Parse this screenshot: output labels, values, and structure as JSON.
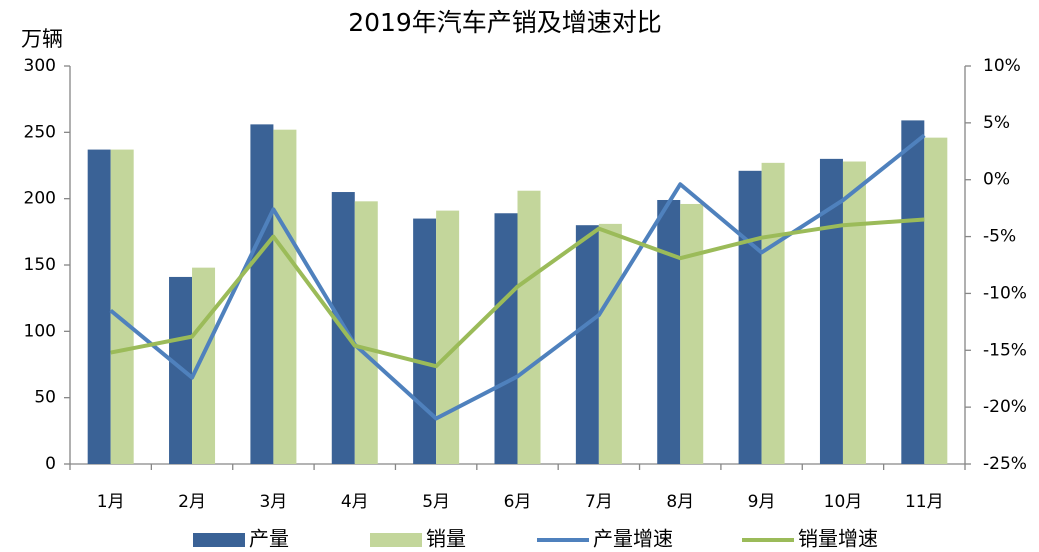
{
  "chart_data": {
    "type": "bar",
    "title": "2019年汽车产销及增速对比",
    "y_label": "万辆",
    "categories": [
      "1月",
      "2月",
      "3月",
      "4月",
      "5月",
      "6月",
      "7月",
      "8月",
      "9月",
      "10月",
      "11月"
    ],
    "series": [
      {
        "name": "产量",
        "type": "bar",
        "color": "#3a6296",
        "values": [
          237,
          141,
          256,
          205,
          185,
          189,
          180,
          199,
          221,
          230,
          259
        ]
      },
      {
        "name": "销量",
        "type": "bar",
        "color": "#c3d69b",
        "values": [
          237,
          148,
          252,
          198,
          191,
          206,
          181,
          196,
          227,
          228,
          246
        ]
      },
      {
        "name": "产量增速",
        "type": "line",
        "axis": "y2",
        "color": "#4f81bd",
        "values": [
          -11.5,
          -17.4,
          -2.6,
          -14.5,
          -21.0,
          -17.3,
          -11.9,
          -0.4,
          -6.4,
          -1.8,
          3.9
        ]
      },
      {
        "name": "销量增速",
        "type": "line",
        "axis": "y2",
        "color": "#9bbb59",
        "values": [
          -15.2,
          -13.8,
          -5.0,
          -14.6,
          -16.4,
          -9.4,
          -4.3,
          -6.9,
          -5.1,
          -4.0,
          -3.5
        ]
      }
    ],
    "ylim": [
      0,
      300
    ],
    "yticks": [
      0,
      50,
      100,
      150,
      200,
      250,
      300
    ],
    "y2lim": [
      -25,
      10
    ],
    "y2ticks": [
      {
        "value": -25,
        "label": "-25%"
      },
      {
        "value": -20,
        "label": "-20%"
      },
      {
        "value": -15,
        "label": "-15%"
      },
      {
        "value": -10,
        "label": "-10%"
      },
      {
        "value": -5,
        "label": "-5%"
      },
      {
        "value": 0,
        "label": "0%"
      },
      {
        "value": 5,
        "label": "5%"
      },
      {
        "value": 10,
        "label": "10%"
      }
    ],
    "legend": "bottom"
  }
}
